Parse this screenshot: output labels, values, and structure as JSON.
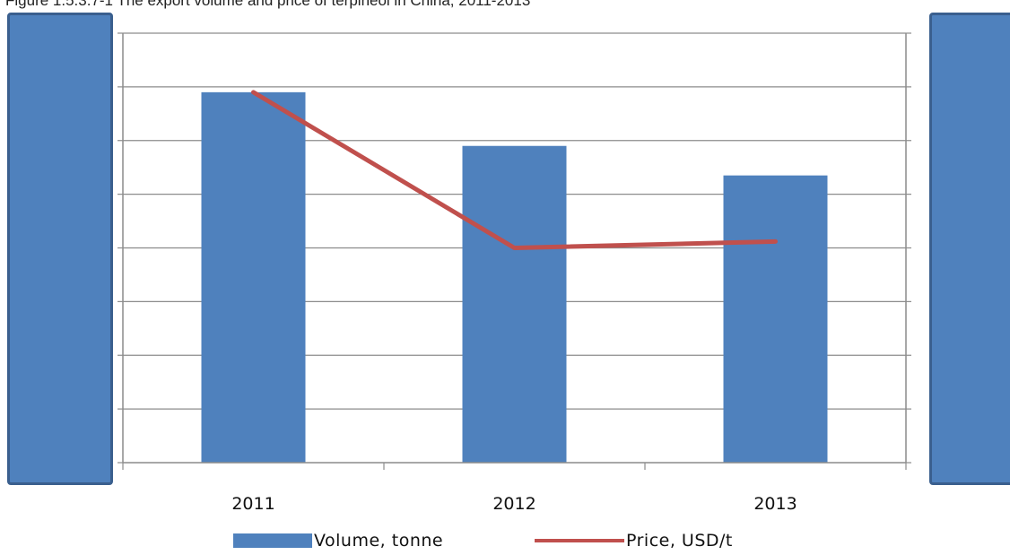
{
  "figure": {
    "caption": "Figure 1.5.3.7-1 The export volume and price of terpineol in China, 2011-2013"
  },
  "chart_data": {
    "type": "bar",
    "categories": [
      "2011",
      "2012",
      "2013"
    ],
    "series": [
      {
        "name": "Volume, tonne",
        "kind": "bar",
        "axis": "left",
        "values": [
          6.9,
          5.9,
          5.35
        ],
        "color": "#4f81bd"
      },
      {
        "name": "Price, USD/t",
        "kind": "line",
        "axis": "right",
        "values": [
          6.9,
          4.0,
          4.12
        ],
        "color": "#c0504d"
      }
    ],
    "left_axis": {
      "ylim": [
        0,
        8
      ],
      "ticks": 8,
      "labels_visible": false
    },
    "right_axis": {
      "ylim": [
        0,
        8
      ],
      "ticks": 8,
      "labels_visible": false
    },
    "grid": true,
    "legend_position": "bottom",
    "mask_color": "#4f81bd"
  }
}
